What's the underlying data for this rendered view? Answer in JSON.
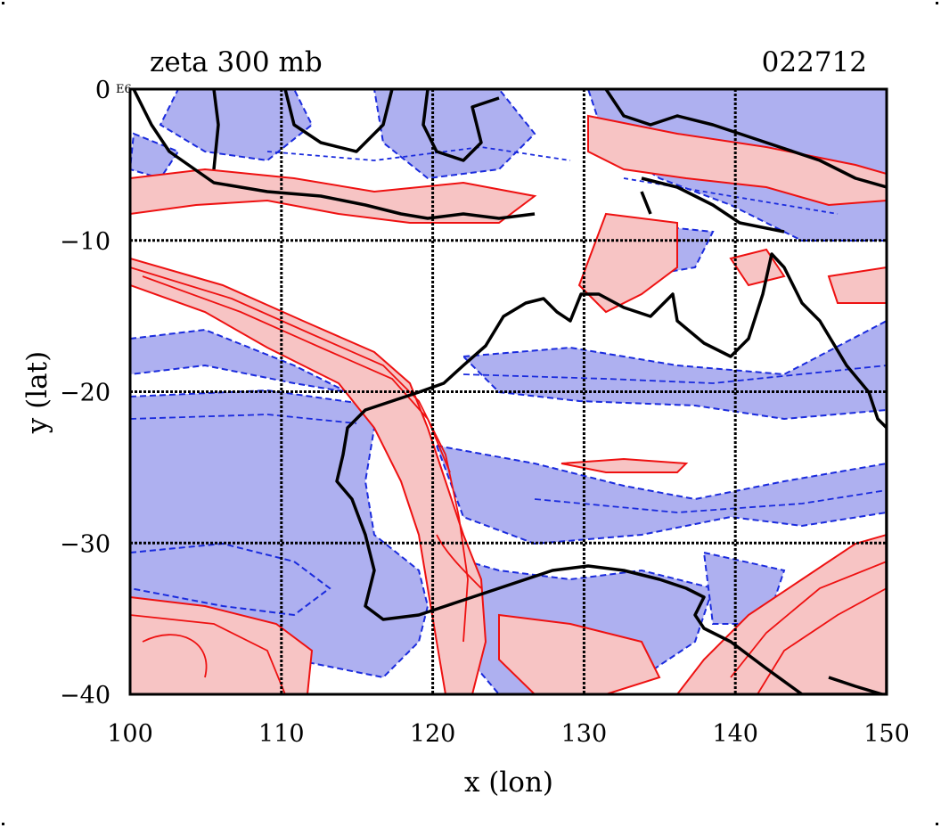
{
  "title": "zeta 300 mb",
  "timestamp": "022712",
  "scale_note": "E6",
  "axes": {
    "xlabel": "x (lon)",
    "ylabel": "y (lat)",
    "xlim": [
      100,
      150
    ],
    "ylim": [
      -40,
      0
    ],
    "x_ticks": [
      "100",
      "110",
      "120",
      "130",
      "140",
      "150"
    ],
    "y_ticks": [
      "0",
      "−10",
      "−20",
      "−30",
      "−40"
    ],
    "x_tick_values": [
      100,
      110,
      120,
      130,
      140,
      150
    ],
    "y_tick_values": [
      0,
      -10,
      -20,
      -30,
      -40
    ],
    "grid": true
  },
  "colors": {
    "positive_line": "#ee1111",
    "positive_fill": "#f7c4c4",
    "negative_line": "#1a2bdd",
    "negative_fill": "#aeb0f0",
    "coast": "#000000"
  }
}
